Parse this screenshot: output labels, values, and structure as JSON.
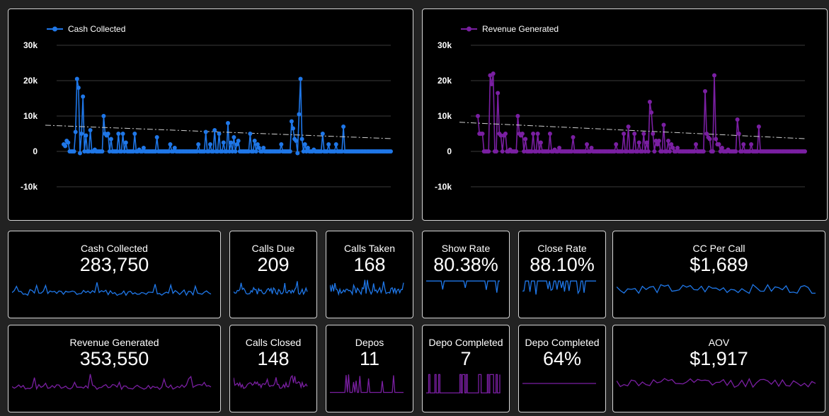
{
  "colors": {
    "background": "#222222",
    "panel": "#000000",
    "border": "#d6d6d6",
    "blue": "#1f77e8",
    "purple": "#7a1fa2",
    "grid": "#3a3a3a",
    "trend": "#d0d0d0"
  },
  "chart_data": [
    {
      "type": "line",
      "title": "",
      "xlabel": "",
      "ylabel": "",
      "ylim": [
        -10000,
        30000
      ],
      "yticks": [
        "30k",
        "20k",
        "10k",
        "0",
        "-10k"
      ],
      "ytick_values": [
        30000,
        20000,
        10000,
        0,
        -10000
      ],
      "grid": true,
      "legend": "top-left",
      "trendline": true,
      "series": [
        {
          "name": "Cash Collected",
          "color": "#1f77e8",
          "values": [
            2000,
            1500,
            3000,
            2500,
            0,
            0,
            0,
            0,
            5500,
            20500,
            18000,
            -500,
            5000,
            15500,
            0,
            4500,
            0,
            0,
            6000,
            0,
            0,
            500,
            0,
            0,
            0,
            0,
            0,
            10000,
            5000,
            4500,
            5000,
            0,
            3500,
            0,
            0,
            0,
            0,
            5000,
            0,
            0,
            5000,
            0,
            2500,
            0,
            0,
            0,
            0,
            0,
            5000,
            0,
            0,
            500,
            0,
            0,
            1000,
            0,
            0,
            0,
            0,
            0,
            0,
            0,
            0,
            4000,
            0,
            0,
            0,
            0,
            0,
            0,
            0,
            0,
            2000,
            0,
            0,
            1000,
            0,
            0,
            0,
            0,
            0,
            0,
            0,
            0,
            0,
            0,
            0,
            0,
            0,
            0,
            0,
            2000,
            0,
            0,
            0,
            0,
            5500,
            0,
            0,
            2000,
            0,
            0,
            6000,
            0,
            0,
            5000,
            0,
            0,
            2500,
            0,
            0,
            8000,
            0,
            2500,
            0,
            4000,
            0,
            2000,
            3000,
            0,
            0,
            0,
            0,
            0,
            0,
            0,
            5000,
            0,
            0,
            3000,
            0,
            2000,
            1000,
            0,
            0,
            1000,
            0,
            0,
            0,
            0,
            0,
            0,
            0,
            0,
            0,
            0,
            0,
            2000,
            0,
            0,
            0,
            0,
            0,
            0,
            8500,
            6500,
            3500,
            3000,
            -500,
            10500,
            20500,
            3500,
            0,
            2000,
            0,
            1000,
            0,
            0,
            0,
            500,
            0,
            0,
            0,
            0,
            0,
            5000,
            0,
            0,
            0,
            2000,
            0,
            0,
            0,
            0,
            2000,
            0,
            0,
            0,
            0,
            7000,
            0,
            0,
            0,
            0,
            0,
            0,
            0,
            0,
            0,
            0,
            0,
            0,
            0,
            0,
            0,
            0,
            0,
            0,
            0,
            0,
            0,
            0,
            0,
            0,
            0,
            0,
            0,
            0,
            0,
            0,
            0,
            0
          ]
        }
      ]
    },
    {
      "type": "line",
      "title": "",
      "xlabel": "",
      "ylabel": "",
      "ylim": [
        -10000,
        30000
      ],
      "yticks": [
        "30k",
        "20k",
        "10k",
        "0",
        "-10k"
      ],
      "ytick_values": [
        30000,
        20000,
        10000,
        0,
        -10000
      ],
      "grid": true,
      "legend": "top-left",
      "trendline": true,
      "series": [
        {
          "name": "Revenue Generated",
          "color": "#7a1fa2",
          "values": [
            10000,
            5000,
            5000,
            5000,
            0,
            0,
            0,
            0,
            21500,
            19000,
            22000,
            0,
            0,
            16500,
            5000,
            4500,
            0,
            4500,
            5000,
            0,
            0,
            500,
            0,
            0,
            0,
            0,
            10000,
            5000,
            4500,
            5000,
            0,
            3500,
            0,
            0,
            0,
            0,
            5000,
            0,
            0,
            5000,
            0,
            2500,
            0,
            0,
            0,
            0,
            0,
            5000,
            0,
            0,
            500,
            0,
            0,
            1000,
            0,
            0,
            0,
            0,
            0,
            0,
            0,
            0,
            4000,
            0,
            0,
            0,
            0,
            0,
            0,
            0,
            0,
            2000,
            0,
            0,
            1000,
            0,
            0,
            0,
            0,
            0,
            0,
            0,
            0,
            0,
            0,
            0,
            0,
            0,
            0,
            0,
            2000,
            0,
            0,
            0,
            0,
            5000,
            0,
            0,
            7000,
            0,
            0,
            0,
            5000,
            0,
            0,
            2500,
            0,
            0,
            5000,
            0,
            2500,
            0,
            14000,
            11000,
            5000,
            0,
            3000,
            2000,
            3000,
            0,
            0,
            7500,
            0,
            0,
            3000,
            0,
            2000,
            1000,
            0,
            0,
            1000,
            0,
            0,
            0,
            0,
            0,
            0,
            0,
            0,
            0,
            0,
            0,
            2000,
            0,
            0,
            0,
            0,
            0,
            17000,
            5000,
            4000,
            3500,
            0,
            0,
            21500,
            3500,
            2000,
            2000,
            0,
            1000,
            0,
            0,
            0,
            500,
            0,
            0,
            0,
            0,
            0,
            9000,
            5000,
            0,
            0,
            2000,
            0,
            0,
            0,
            0,
            2000,
            0,
            0,
            0,
            0,
            7000,
            0,
            0,
            0,
            0,
            0,
            0,
            0,
            0,
            0,
            0,
            0,
            0,
            0,
            0,
            0,
            0,
            0,
            0,
            0,
            0,
            0,
            0,
            0,
            0,
            0,
            0,
            0,
            0,
            0,
            0
          ]
        }
      ]
    }
  ],
  "kpis": {
    "cash_collected": {
      "label": "Cash Collected",
      "value": "283,750"
    },
    "calls_due": {
      "label": "Calls Due",
      "value": "209"
    },
    "calls_taken": {
      "label": "Calls Taken",
      "value": "168"
    },
    "show_rate": {
      "label": "Show Rate",
      "value": "80.38%"
    },
    "close_rate": {
      "label": "Close Rate",
      "value": "88.10%"
    },
    "cc_per_call": {
      "label": "CC Per Call",
      "value": "$1,689"
    },
    "revenue_generated": {
      "label": "Revenue Generated",
      "value": "353,550"
    },
    "calls_closed": {
      "label": "Calls Closed",
      "value": "148"
    },
    "depos": {
      "label": "Depos",
      "value": "11"
    },
    "depo_completed_count": {
      "label": "Depo Completed",
      "value": "7"
    },
    "depo_completed_rate": {
      "label": "Depo Completed",
      "value": "64%"
    },
    "aov": {
      "label": "AOV",
      "value": "$1,917"
    }
  }
}
